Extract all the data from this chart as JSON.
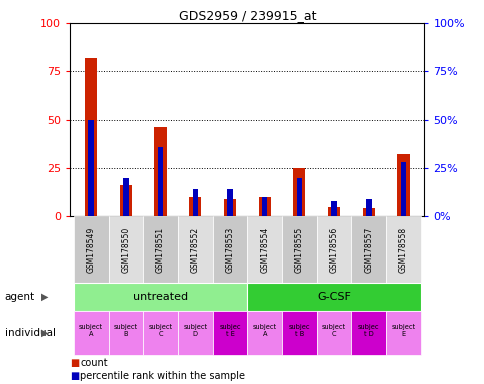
{
  "title": "GDS2959 / 239915_at",
  "samples": [
    "GSM178549",
    "GSM178550",
    "GSM178551",
    "GSM178552",
    "GSM178553",
    "GSM178554",
    "GSM178555",
    "GSM178556",
    "GSM178557",
    "GSM178558"
  ],
  "count_values": [
    82,
    16,
    46,
    10,
    9,
    10,
    25,
    5,
    4,
    32
  ],
  "percentile_values": [
    50,
    20,
    36,
    14,
    14,
    10,
    20,
    8,
    9,
    28
  ],
  "agents": [
    {
      "label": "untreated",
      "start": 0,
      "end": 5,
      "color": "#90ee90"
    },
    {
      "label": "G-CSF",
      "start": 5,
      "end": 10,
      "color": "#33cc33"
    }
  ],
  "individuals": [
    {
      "label": "subject\nA",
      "idx": 0,
      "highlight": false
    },
    {
      "label": "subject\nB",
      "idx": 1,
      "highlight": false
    },
    {
      "label": "subject\nC",
      "idx": 2,
      "highlight": false
    },
    {
      "label": "subject\nD",
      "idx": 3,
      "highlight": false
    },
    {
      "label": "subjec\nt E",
      "idx": 4,
      "highlight": true
    },
    {
      "label": "subject\nA",
      "idx": 5,
      "highlight": false
    },
    {
      "label": "subjec\nt B",
      "idx": 6,
      "highlight": true
    },
    {
      "label": "subject\nC",
      "idx": 7,
      "highlight": false
    },
    {
      "label": "subjec\nt D",
      "idx": 8,
      "highlight": true
    },
    {
      "label": "subject\nE",
      "idx": 9,
      "highlight": false
    }
  ],
  "ind_base_color": "#ee82ee",
  "ind_highlight_color": "#cc00cc",
  "bar_color": "#cc2200",
  "percentile_color": "#0000bb",
  "ylim": [
    0,
    100
  ],
  "yticks": [
    0,
    25,
    50,
    75,
    100
  ],
  "bar_width": 0.35
}
